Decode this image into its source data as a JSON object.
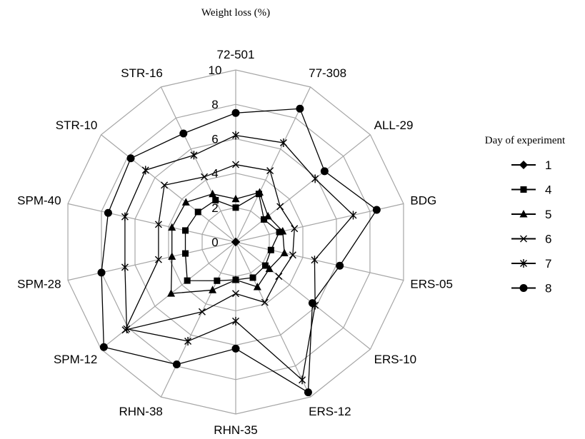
{
  "chart_data": {
    "type": "radar",
    "title": "Weight loss (%)",
    "categories": [
      "72-501",
      "77-308",
      "ALL-29",
      "BDG",
      "ERS-05",
      "ERS-10",
      "ERS-12",
      "RHN-35",
      "RHN-38",
      "SPM-12",
      "SPM-28",
      "SPM-40",
      "STR-10",
      "STR-16"
    ],
    "rlim": [
      0,
      10
    ],
    "rticks": [
      "0",
      "2",
      "4",
      "6",
      "8",
      "10"
    ],
    "grid": true,
    "legend_title": "Day of experiment",
    "legend_position": "right",
    "series": [
      {
        "name": "1",
        "marker": "diamond",
        "values": [
          0,
          0,
          0,
          0,
          0,
          0,
          0,
          0,
          0,
          0,
          0,
          0,
          0,
          0
        ]
      },
      {
        "name": "4",
        "marker": "square",
        "values": [
          2.0,
          3.1,
          2.1,
          2.6,
          2.1,
          2.2,
          2.3,
          2.2,
          2.5,
          3.6,
          3.0,
          3.0,
          2.8,
          2.7
        ]
      },
      {
        "name": "5",
        "marker": "triangle",
        "values": [
          2.5,
          3.2,
          2.4,
          2.8,
          2.9,
          2.5,
          2.9,
          2.2,
          3.1,
          4.8,
          3.8,
          3.8,
          3.7,
          3.1
        ]
      },
      {
        "name": "6",
        "marker": "x",
        "values": [
          4.5,
          4.6,
          3.3,
          3.5,
          3.4,
          3.2,
          3.9,
          3.0,
          4.5,
          8.2,
          4.6,
          4.6,
          5.3,
          4.2
        ]
      },
      {
        "name": "7",
        "marker": "star",
        "values": [
          6.2,
          6.4,
          5.9,
          7.0,
          4.7,
          5.9,
          8.9,
          4.6,
          6.4,
          8.1,
          6.6,
          6.6,
          6.7,
          5.6
        ]
      },
      {
        "name": "8",
        "marker": "circle",
        "values": [
          7.5,
          8.6,
          6.6,
          8.4,
          6.2,
          5.7,
          9.7,
          6.2,
          7.9,
          9.8,
          8.0,
          7.6,
          7.8,
          7.0
        ]
      }
    ]
  }
}
